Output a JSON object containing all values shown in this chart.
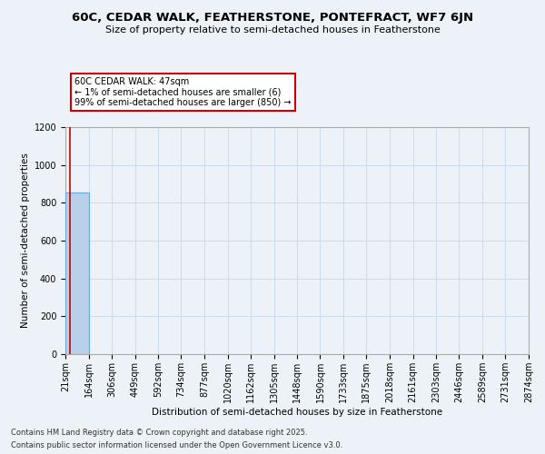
{
  "title": "60C, CEDAR WALK, FEATHERSTONE, PONTEFRACT, WF7 6JN",
  "subtitle": "Size of property relative to semi-detached houses in Featherstone",
  "xlabel": "Distribution of semi-detached houses by size in Featherstone",
  "ylabel": "Number of semi-detached properties",
  "property_size": 47,
  "annotation_text": "60C CEDAR WALK: 47sqm\n← 1% of semi-detached houses are smaller (6)\n99% of semi-detached houses are larger (850) →",
  "bin_edges": [
    21,
    164,
    306,
    449,
    592,
    734,
    877,
    1020,
    1162,
    1305,
    1448,
    1590,
    1733,
    1875,
    2018,
    2161,
    2303,
    2446,
    2589,
    2731,
    2874
  ],
  "bar_heights": [
    856,
    0,
    0,
    0,
    0,
    0,
    0,
    0,
    0,
    0,
    0,
    0,
    0,
    0,
    0,
    0,
    0,
    0,
    0,
    0
  ],
  "bar_color": "#b8d0ea",
  "bar_edge_color": "#6aaad4",
  "red_line_color": "#cc0000",
  "annotation_box_facecolor": "#ffffff",
  "annotation_box_edgecolor": "#cc0000",
  "grid_color": "#c8d8e8",
  "background_color": "#edf2f8",
  "ylim": [
    0,
    1200
  ],
  "yticks": [
    0,
    200,
    400,
    600,
    800,
    1000,
    1200
  ],
  "title_fontsize": 9.5,
  "subtitle_fontsize": 8,
  "ylabel_fontsize": 7.5,
  "xlabel_fontsize": 7.5,
  "tick_fontsize": 7,
  "annot_fontsize": 7,
  "footer_line1": "Contains HM Land Registry data © Crown copyright and database right 2025.",
  "footer_line2": "Contains public sector information licensed under the Open Government Licence v3.0.",
  "footer_fontsize": 6
}
